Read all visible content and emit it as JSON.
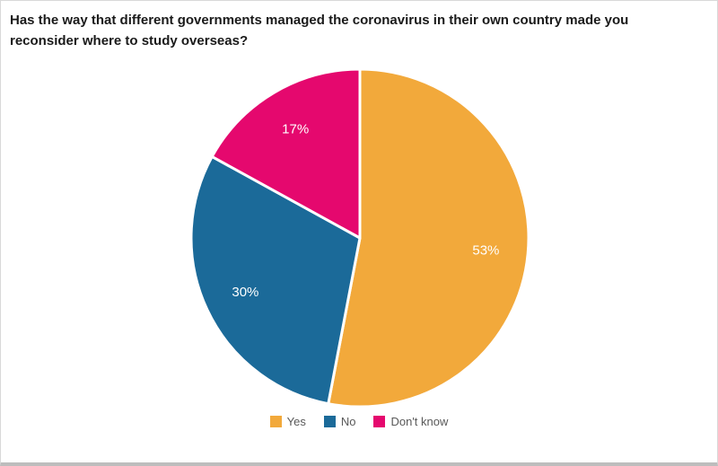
{
  "chart_data": {
    "type": "pie",
    "title": "Has the way that different governments managed the coronavirus in their own country made you reconsider where to study overseas?",
    "categories": [
      "Yes",
      "No",
      "Don't know"
    ],
    "values": [
      53,
      30,
      17
    ],
    "colors": [
      "#F2A93B",
      "#1B6A99",
      "#E5086E"
    ],
    "slice_labels": [
      "53%",
      "30%",
      "17%"
    ],
    "slice_label_color": "#ffffff",
    "start_angle_deg": 0,
    "direction": "clockwise",
    "legend_position": "bottom",
    "legend_text_color": "#595959"
  }
}
